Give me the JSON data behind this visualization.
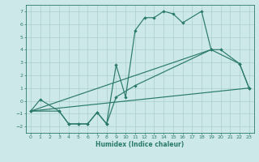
{
  "xlabel": "Humidex (Indice chaleur)",
  "bg_color": "#cde8e8",
  "grid_color": "#aacfcf",
  "line_color": "#2a7a6a",
  "xlim": [
    -0.5,
    23.5
  ],
  "ylim": [
    -2.5,
    7.5
  ],
  "xticks": [
    0,
    1,
    2,
    3,
    4,
    5,
    6,
    7,
    8,
    9,
    10,
    11,
    12,
    13,
    14,
    15,
    16,
    17,
    18,
    19,
    20,
    21,
    22,
    23
  ],
  "yticks": [
    -2,
    -1,
    0,
    1,
    2,
    3,
    4,
    5,
    6,
    7
  ],
  "curve_main_x": [
    0,
    3,
    4,
    5,
    6,
    7,
    8,
    9,
    10,
    11,
    12,
    13,
    14,
    15,
    16,
    18,
    19,
    22,
    23
  ],
  "curve_main_y": [
    -0.8,
    -0.8,
    -1.8,
    -1.8,
    -1.8,
    -0.9,
    -1.8,
    2.8,
    0.3,
    5.5,
    6.5,
    6.5,
    7.0,
    6.8,
    6.1,
    7.0,
    4.0,
    2.9,
    1.0
  ],
  "curve_lower_x": [
    0,
    1,
    3,
    4,
    5,
    6,
    7,
    8,
    9,
    11,
    19,
    20,
    22,
    23
  ],
  "curve_lower_y": [
    -0.8,
    0.1,
    -0.8,
    -1.8,
    -1.8,
    -1.8,
    -0.9,
    -1.8,
    0.3,
    1.2,
    4.0,
    4.0,
    2.9,
    1.0
  ],
  "line1_x": [
    0,
    23
  ],
  "line1_y": [
    -0.8,
    1.0
  ],
  "line2_x": [
    0,
    19
  ],
  "line2_y": [
    -0.8,
    4.0
  ]
}
